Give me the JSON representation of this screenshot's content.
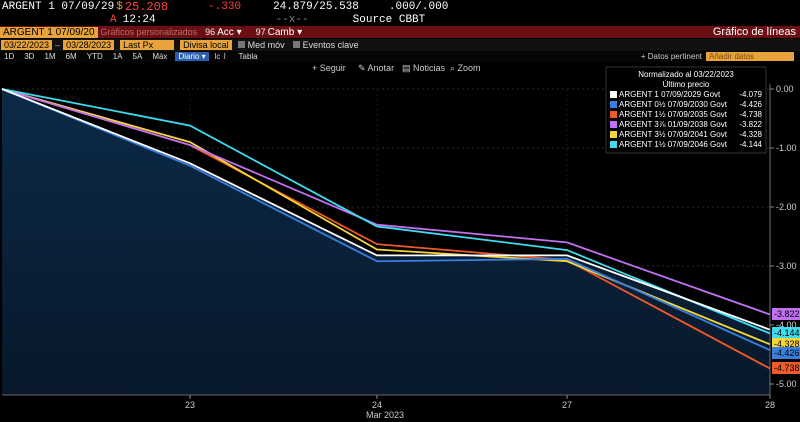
{
  "header": {
    "security": "ARGENT 1 07/09/29",
    "currency": "$",
    "price": "25.208",
    "change": "-.330",
    "bid_ask": "24.879/25.538",
    "yields": ".000/.000",
    "flag": "A",
    "time": "12:24",
    "sep": "--x--",
    "source": "Source CBBT"
  },
  "menu": {
    "ticker_field": "ARGENT 1 07/09/20",
    "buttons_suffix": "Gráficos personalizados",
    "n96_label": "96",
    "acc_label": "Acc",
    "n97_label": "97",
    "camb_label": "Camb",
    "title": "Gráfico de líneas"
  },
  "toolbar": {
    "start_date": "03/22/2023",
    "end_date": "03/28/2023",
    "price_field": "Last Px",
    "currency": "Divisa local",
    "moving_avg": "Med móv",
    "key_events": "Eventos clave",
    "data_pertinent": "+ Datos pertinent",
    "add_data": "Añadir datos"
  },
  "periods": {
    "items": [
      "1D",
      "3D",
      "1M",
      "6M",
      "YTD",
      "1A",
      "5A",
      "Máx"
    ],
    "frequency": "Diario",
    "table": "Tabla"
  },
  "actions": {
    "follow": "+ Seguir",
    "annotate": "Anotar",
    "news": "Noticias",
    "zoom": "Zoom"
  },
  "chart_data": {
    "type": "line",
    "title": "Normalizado al 03/22/2023",
    "subtitle": "Último precio",
    "x": [
      "03/22/2023",
      "23",
      "24",
      "27",
      "28"
    ],
    "x_month_label": "Mar 2023",
    "ylim": [
      -5.2,
      0
    ],
    "yticks": [
      "0.00",
      "-1.00",
      "-2.00",
      "-3.00",
      "-4.00",
      "-5.00"
    ],
    "ytick_values": [
      0,
      -1,
      -2,
      -3,
      -4,
      -5
    ],
    "legend_position": "top-right",
    "series": [
      {
        "name": "ARGENT 1 07/09/2029 Govt",
        "last": "-4.079",
        "color": "#ffffff",
        "values": [
          0,
          -1.26,
          -2.82,
          -2.82,
          -4.079
        ]
      },
      {
        "name": "ARGENT 0½ 07/09/2030 Govt",
        "last": "-4.426",
        "color": "#3a7fe0",
        "values": [
          0,
          -1.3,
          -2.92,
          -2.88,
          -4.426
        ]
      },
      {
        "name": "ARGENT 1½ 07/09/2035 Govt",
        "last": "-4.738",
        "color": "#f05a28",
        "values": [
          0,
          -0.95,
          -2.63,
          -2.9,
          -4.738
        ]
      },
      {
        "name": "ARGENT 3⅞ 01/09/2038 Govt",
        "last": "-3.822",
        "color": "#c070f0",
        "values": [
          0,
          -0.95,
          -2.3,
          -2.6,
          -3.822
        ]
      },
      {
        "name": "ARGENT 3½ 07/09/2041 Govt",
        "last": "-4.328",
        "color": "#f5d63a",
        "values": [
          0,
          -0.9,
          -2.72,
          -2.92,
          -4.328
        ]
      },
      {
        "name": "ARGENT 1½ 07/09/2046 Govt",
        "last": "-4.144",
        "color": "#3fdcf0",
        "values": [
          0,
          -0.62,
          -2.33,
          -2.73,
          -4.144
        ]
      }
    ]
  }
}
